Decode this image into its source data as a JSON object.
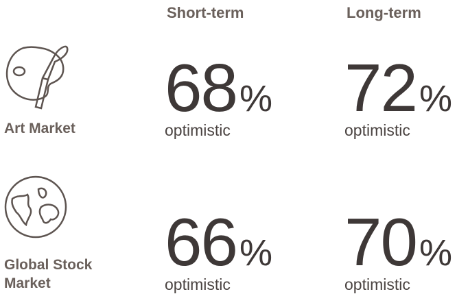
{
  "columns": [
    "Short-term",
    "Long-term"
  ],
  "rows": [
    {
      "label": "Art Market",
      "cells": [
        {
          "number": 68,
          "unit": "%",
          "caption": "optimistic"
        },
        {
          "number": 72,
          "unit": "%",
          "caption": "optimistic"
        }
      ]
    },
    {
      "label": "Global Stock Market",
      "cells": [
        {
          "number": 66,
          "unit": "%",
          "caption": "optimistic"
        },
        {
          "number": 70,
          "unit": "%",
          "caption": "optimistic"
        }
      ]
    }
  ]
}
